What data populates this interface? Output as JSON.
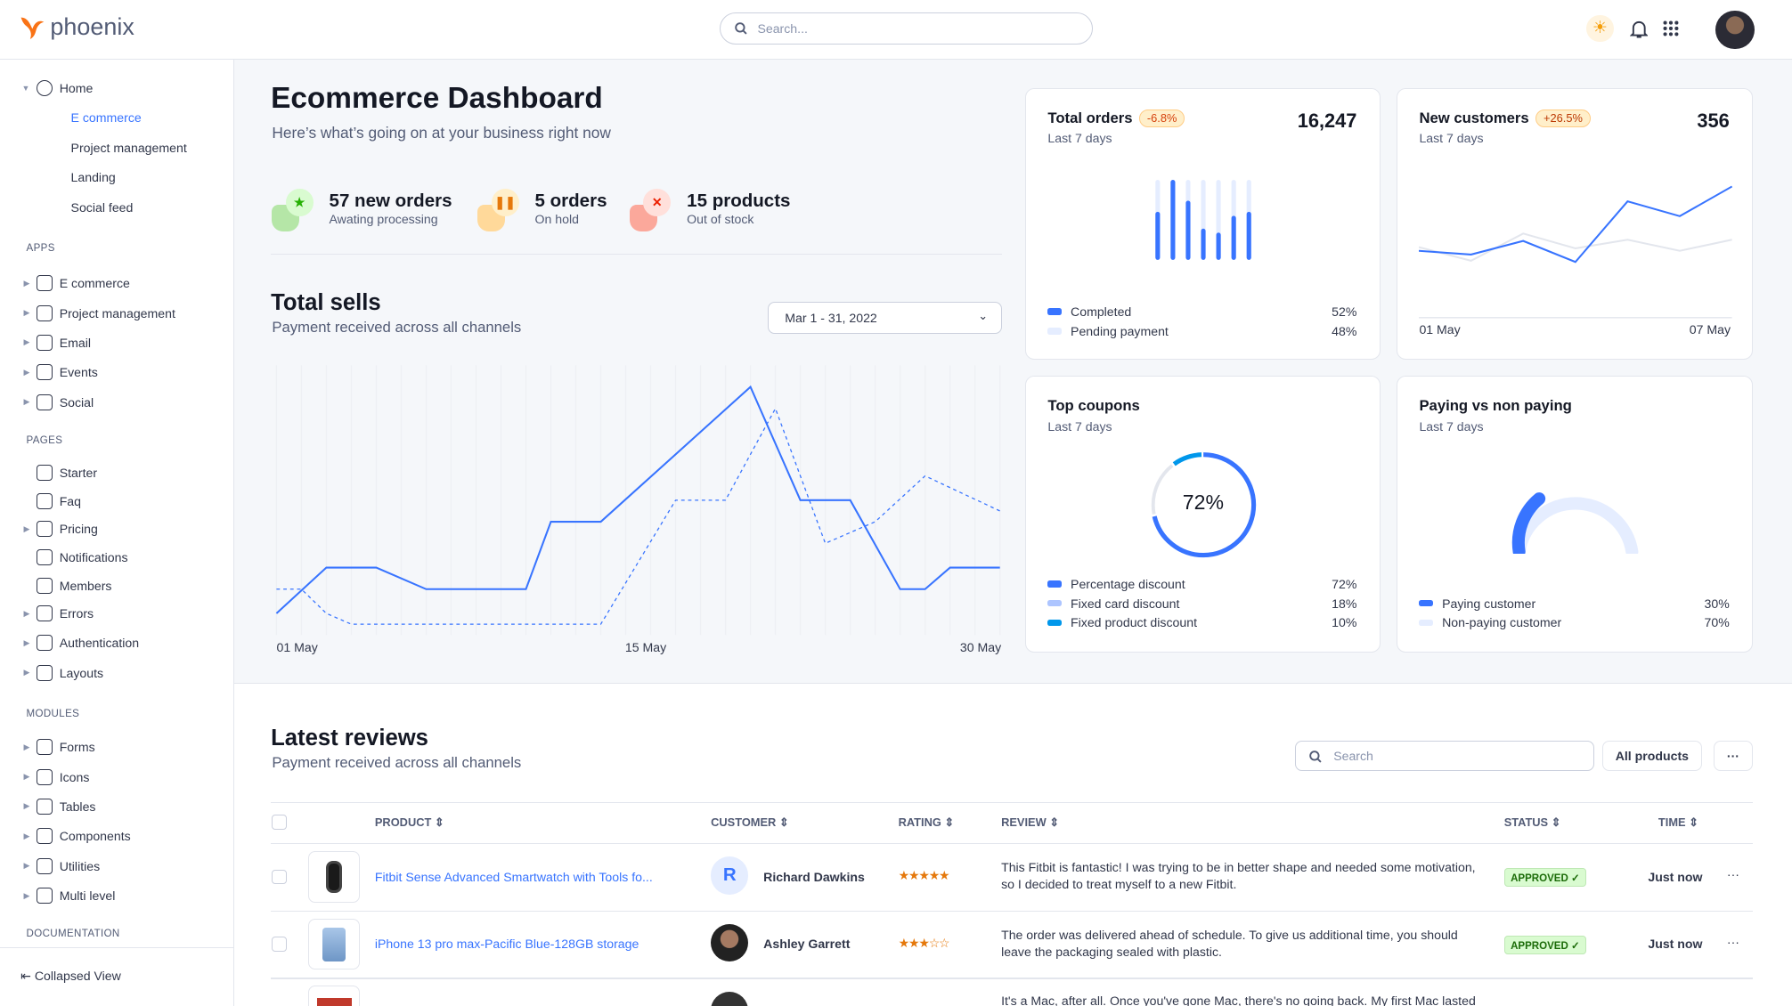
{
  "app": {
    "name": "phoenix",
    "search_placeholder": "Search..."
  },
  "sidebar": {
    "home": "Home",
    "home_sub": [
      "E commerce",
      "Project management",
      "Landing",
      "Social feed"
    ],
    "sections": [
      "APPS",
      "PAGES",
      "MODULES",
      "DOCUMENTATION"
    ],
    "apps": [
      "E commerce",
      "Project management",
      "Email",
      "Events",
      "Social"
    ],
    "pages": [
      "Starter",
      "Faq",
      "Pricing",
      "Notifications",
      "Members",
      "Errors",
      "Authentication",
      "Layouts"
    ],
    "modules": [
      "Forms",
      "Icons",
      "Tables",
      "Components",
      "Utilities",
      "Multi level"
    ],
    "collapse": "Collapsed View"
  },
  "header": {
    "title": "Ecommerce Dashboard",
    "subtitle": "Here’s what’s going on at your business right now"
  },
  "stats": [
    {
      "value": "57 new orders",
      "label": "Awating processing"
    },
    {
      "value": "5 orders",
      "label": "On hold"
    },
    {
      "value": "15 products",
      "label": "Out of stock"
    }
  ],
  "total_sells": {
    "title": "Total sells",
    "subtitle": "Payment received across all channels",
    "date_range": "Mar 1 - 31, 2022"
  },
  "chart_data": [
    {
      "type": "line",
      "x_ticks": [
        "01 May",
        "15 May",
        "30 May"
      ],
      "xlim": [
        1,
        30
      ],
      "ylim": [
        0,
        100
      ],
      "grid": "vertical",
      "series": [
        {
          "style": "solid",
          "color": "#3874ff",
          "x": [
            1,
            3,
            5,
            7,
            11,
            12,
            14,
            20,
            22,
            24,
            26,
            27,
            28,
            30
          ],
          "y": [
            8,
            25,
            25,
            17,
            17,
            42,
            42,
            92,
            50,
            50,
            17,
            17,
            25,
            25
          ]
        },
        {
          "style": "dashed",
          "color": "#3874ff",
          "x": [
            1,
            2,
            3,
            4,
            14,
            17,
            19,
            21,
            23,
            25,
            27,
            30
          ],
          "y": [
            17,
            17,
            8,
            4,
            4,
            50,
            50,
            84,
            34,
            42,
            59,
            46
          ]
        }
      ]
    },
    {
      "type": "bar",
      "title": "Total orders",
      "categories": [
        1,
        2,
        3,
        4,
        5,
        6,
        7
      ],
      "values": [
        0.6,
        1.0,
        0.74,
        0.39,
        0.34,
        0.55,
        0.6
      ],
      "max": 1
    },
    {
      "type": "line",
      "title": "New customers",
      "x_ticks": [
        "01 May",
        "07 May"
      ],
      "series": [
        {
          "color": "#3874ff",
          "values": [
            5.4,
            5.1,
            6.2,
            4.5,
            9.4,
            8.2,
            10.6
          ]
        },
        {
          "color": "#e3e6ed",
          "values": [
            5.7,
            4.6,
            6.8,
            5.6,
            6.3,
            5.4,
            6.3
          ]
        }
      ],
      "ylim": [
        0,
        12
      ]
    },
    {
      "type": "pie",
      "title": "Top coupons",
      "center_label": "72%",
      "values": [
        72,
        18,
        10
      ]
    },
    {
      "type": "pie",
      "title": "Paying vs non paying",
      "values": [
        30,
        70
      ]
    }
  ],
  "cards": {
    "total_orders": {
      "title": "Total orders",
      "badge": "-6.8%",
      "sub": "Last 7 days",
      "value": "16,247",
      "legend": [
        {
          "label": "Completed",
          "value": "52%",
          "color": "#3874ff"
        },
        {
          "label": "Pending payment",
          "value": "48%",
          "color": "#e5edff"
        }
      ]
    },
    "new_customers": {
      "title": "New customers",
      "badge": "+26.5%",
      "sub": "Last 7 days",
      "value": "356",
      "x_start": "01 May",
      "x_end": "07 May"
    },
    "top_coupons": {
      "title": "Top coupons",
      "sub": "Last 7 days",
      "center": "72%",
      "legend": [
        {
          "label": "Percentage discount",
          "value": "72%",
          "color": "#3874ff"
        },
        {
          "label": "Fixed card discount",
          "value": "18%",
          "color": "#adc5ff"
        },
        {
          "label": "Fixed product discount",
          "value": "10%",
          "color": "#0097eb"
        }
      ]
    },
    "paying": {
      "title": "Paying vs non paying",
      "sub": "Last 7 days",
      "legend": [
        {
          "label": "Paying customer",
          "value": "30%",
          "color": "#3874ff"
        },
        {
          "label": "Non-paying customer",
          "value": "70%",
          "color": "#e5edff"
        }
      ]
    }
  },
  "reviews": {
    "title": "Latest reviews",
    "subtitle": "Payment received across all channels",
    "search_placeholder": "Search",
    "filter": "All products",
    "more": "···",
    "columns": [
      "PRODUCT",
      "CUSTOMER",
      "RATING",
      "REVIEW",
      "STATUS",
      "TIME"
    ],
    "rows": [
      {
        "product": "Fitbit Sense Advanced Smartwatch with Tools fo...",
        "customer": "Richard Dawkins",
        "initial": "R",
        "rating": 5,
        "stars": "★★★★★",
        "review": "This Fitbit is fantastic! I was trying to be in better shape and needed some motivation, so I decided to treat myself to a new Fitbit.",
        "status": "APPROVED ✓",
        "time": "Just now"
      },
      {
        "product": "iPhone 13 pro max-Pacific Blue-128GB storage",
        "customer": "Ashley Garrett",
        "rating": 3,
        "stars": "★★★☆☆",
        "review": "The order was delivered ahead of schedule. To give us additional time, you should leave the packaging sealed with plastic.",
        "status": "APPROVED ✓",
        "time": "Just now"
      },
      {
        "review": "It's a Mac, after all. Once you've gone Mac, there's no going back. My first Mac lasted"
      }
    ]
  }
}
